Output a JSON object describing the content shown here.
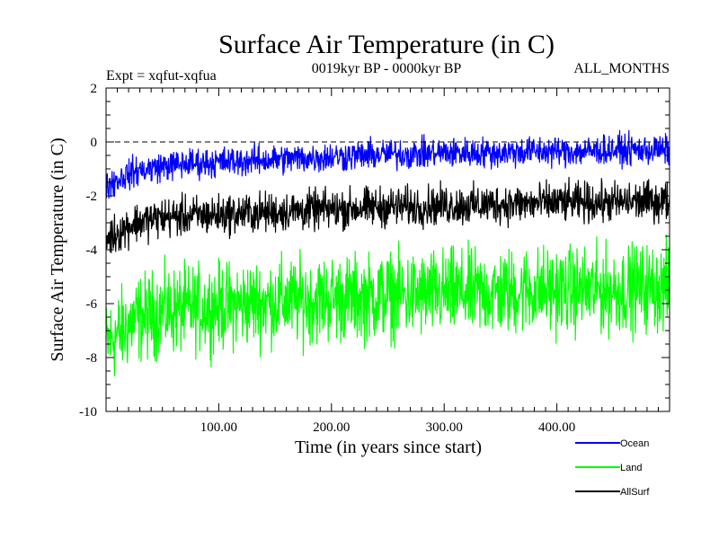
{
  "chart_data": {
    "type": "line",
    "title": "Surface Air Temperature (in C)",
    "experiment": "Expt = xqfut-xqfua",
    "period": "0019kyr BP - 0000kyr BP",
    "months": "ALL_MONTHS",
    "xlabel": "Time (in years since start)",
    "ylabel": "Surface Air Temperature (in C)",
    "xlim": [
      0,
      500
    ],
    "ylim": [
      -10,
      2
    ],
    "x_ticks": [
      {
        "value": 100,
        "label": "100.00"
      },
      {
        "value": 200,
        "label": "200.00"
      },
      {
        "value": 300,
        "label": "300.00"
      },
      {
        "value": 400,
        "label": "400.00"
      }
    ],
    "y_ticks": [
      {
        "value": 2,
        "label": "2"
      },
      {
        "value": 0,
        "label": "0"
      },
      {
        "value": -2,
        "label": "-2"
      },
      {
        "value": -4,
        "label": "-4"
      },
      {
        "value": -6,
        "label": "-6"
      },
      {
        "value": -8,
        "label": "-8"
      },
      {
        "value": -10,
        "label": "-10"
      }
    ],
    "reference_line": 0,
    "series": [
      {
        "name": "Ocean",
        "color": "#0000ff",
        "x": [
          0,
          25,
          50,
          75,
          100,
          125,
          150,
          175,
          200,
          225,
          250,
          275,
          300,
          325,
          350,
          375,
          400,
          425,
          450,
          475,
          500
        ],
        "values": [
          -1.6,
          -1.1,
          -0.9,
          -0.8,
          -0.75,
          -0.7,
          -0.65,
          -0.6,
          -0.55,
          -0.5,
          -0.45,
          -0.45,
          -0.4,
          -0.4,
          -0.4,
          -0.35,
          -0.35,
          -0.35,
          -0.3,
          -0.3,
          -0.3
        ],
        "noise": 0.45
      },
      {
        "name": "Land",
        "color": "#00ff00",
        "x": [
          0,
          25,
          50,
          75,
          100,
          125,
          150,
          175,
          200,
          225,
          250,
          275,
          300,
          325,
          350,
          375,
          400,
          425,
          450,
          475,
          500
        ],
        "values": [
          -7.5,
          -6.6,
          -6.3,
          -6.2,
          -6.1,
          -6.0,
          -5.9,
          -5.9,
          -5.8,
          -5.8,
          -5.7,
          -5.7,
          -5.6,
          -5.6,
          -5.6,
          -5.5,
          -5.5,
          -5.5,
          -5.5,
          -5.4,
          -5.4
        ],
        "noise": 1.3
      },
      {
        "name": "AllSurf",
        "color": "#000000",
        "x": [
          0,
          25,
          50,
          75,
          100,
          125,
          150,
          175,
          200,
          225,
          250,
          275,
          300,
          325,
          350,
          375,
          400,
          425,
          450,
          475,
          500
        ],
        "values": [
          -3.6,
          -3.0,
          -2.8,
          -2.75,
          -2.7,
          -2.65,
          -2.6,
          -2.55,
          -2.5,
          -2.45,
          -2.4,
          -2.4,
          -2.35,
          -2.35,
          -2.3,
          -2.3,
          -2.25,
          -2.25,
          -2.25,
          -2.2,
          -2.2
        ],
        "noise": 0.6
      }
    ],
    "legend_position": "bottom-right"
  }
}
